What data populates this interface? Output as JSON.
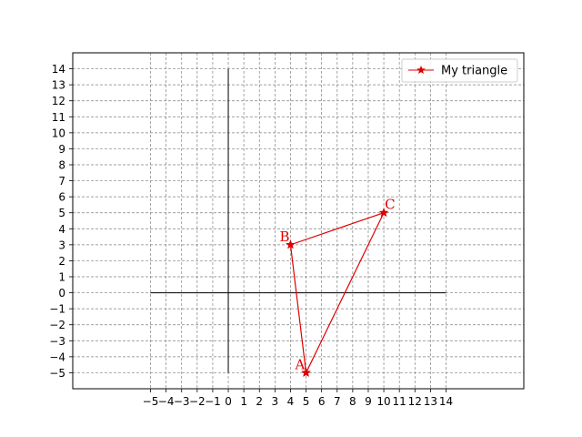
{
  "chart_data": {
    "type": "line",
    "title": "",
    "xlabel": "",
    "ylabel": "",
    "xlim": [
      -10,
      19
    ],
    "ylim": [
      -6,
      15
    ],
    "xticks": [
      -5,
      -4,
      -3,
      -2,
      -1,
      0,
      1,
      2,
      3,
      4,
      5,
      6,
      7,
      8,
      9,
      10,
      11,
      12,
      13,
      14
    ],
    "yticks": [
      -5,
      -4,
      -3,
      -2,
      -1,
      0,
      1,
      2,
      3,
      4,
      5,
      6,
      7,
      8,
      9,
      10,
      11,
      12,
      13,
      14
    ],
    "grid": true,
    "legend_position": "top-right",
    "color": "#e00000",
    "axes_lines": {
      "horizontal": {
        "x": [
          -5,
          14
        ],
        "y": 0
      },
      "vertical": {
        "x": 0,
        "y": [
          -5,
          14
        ]
      }
    },
    "series": [
      {
        "name": "My triangle",
        "marker": "star",
        "points": [
          {
            "label": "A",
            "x": 5,
            "y": -5
          },
          {
            "label": "B",
            "x": 4,
            "y": 3
          },
          {
            "label": "C",
            "x": 10,
            "y": 5
          },
          {
            "label": "",
            "x": 5,
            "y": -5
          }
        ]
      }
    ]
  }
}
